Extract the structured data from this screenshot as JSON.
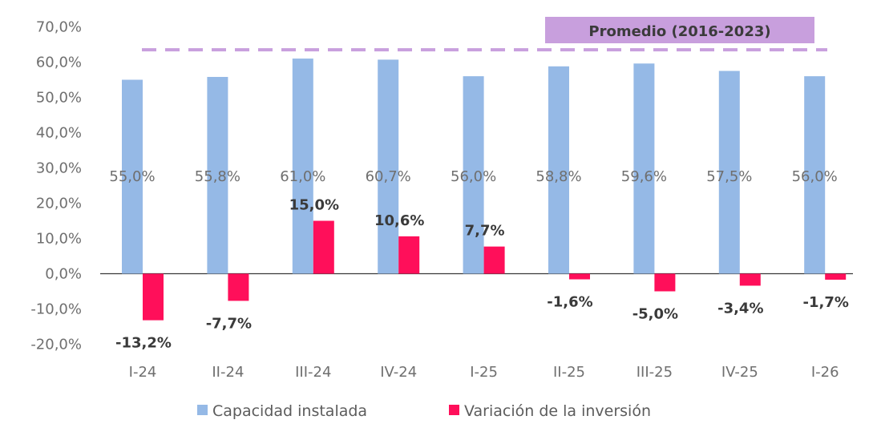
{
  "chart_data": {
    "type": "bar",
    "categories": [
      "I-24",
      "II-24",
      "III-24",
      "IV-24",
      "I-25",
      "II-25",
      "III-25",
      "IV-25",
      "I-26"
    ],
    "series": [
      {
        "name": "Capacidad instalada",
        "values": [
          55.0,
          55.8,
          61.0,
          60.7,
          56.0,
          58.8,
          59.6,
          57.5,
          56.0
        ],
        "labels": [
          "55,0%",
          "55,8%",
          "61,0%",
          "60,7%",
          "56,0%",
          "58,8%",
          "59,6%",
          "57,5%",
          "56,0%"
        ],
        "color": "#95b9e6"
      },
      {
        "name": "Variación de la inversión",
        "values": [
          -13.2,
          -7.7,
          15.0,
          10.6,
          7.7,
          -1.6,
          -5.0,
          -3.4,
          -1.7
        ],
        "labels": [
          "-13,2%",
          "-7,7%",
          "15,0%",
          "10,6%",
          "7,7%",
          "-1,6%",
          "-5,0%",
          "-3,4%",
          "-1,7%"
        ],
        "color": "#ff0f5a"
      }
    ],
    "ylim": [
      -20,
      70
    ],
    "yticks": [
      "-20,0%",
      "-10,0%",
      "0,0%",
      "10,0%",
      "20,0%",
      "30,0%",
      "40,0%",
      "50,0%",
      "60,0%",
      "70,0%"
    ],
    "ytick_values": [
      -20,
      -10,
      0,
      10,
      20,
      30,
      40,
      50,
      60,
      70
    ],
    "reference_line": {
      "value": 63.5,
      "label": "Promedio (2016-2023)",
      "color": "#c89fdd",
      "style": "dashed"
    },
    "legend_position": "bottom",
    "grid": false
  }
}
